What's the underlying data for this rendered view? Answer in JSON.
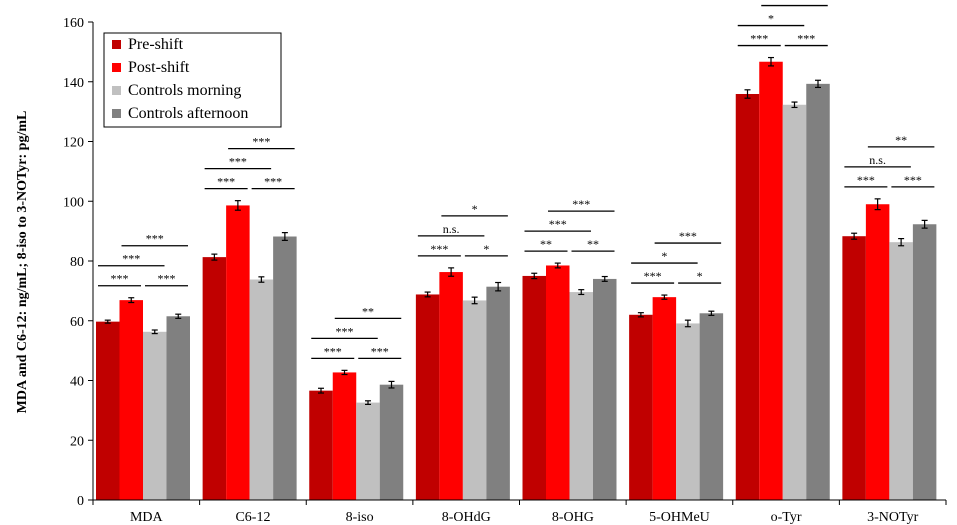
{
  "colors": {
    "pre_shift": "#c00000",
    "post_shift": "#ff0000",
    "controls_morning": "#c0c0c0",
    "controls_afternoon": "#808080"
  },
  "chart_data": {
    "type": "bar",
    "title": "",
    "xlabel": "",
    "ylabel": "MDA and C6-12: ng/mL; 8-iso to 3-NOTyr: pg/mL",
    "ylim": [
      0,
      160
    ],
    "yticks": [
      0,
      20,
      40,
      60,
      80,
      100,
      120,
      140,
      160
    ],
    "grid": false,
    "legend_position": "top-left",
    "categories": [
      "MDA",
      "C6-12",
      "8-iso",
      "8-OHdG",
      "8-OHG",
      "5-OHMeU",
      "o-Tyr",
      "3-NOTyr"
    ],
    "series": [
      {
        "name": "Pre-shift",
        "color_key": "pre_shift",
        "values": [
          59.7,
          81.3,
          36.6,
          68.8,
          75.0,
          62.0,
          135.9,
          88.3
        ],
        "errors": [
          0.5,
          1.0,
          0.8,
          0.8,
          0.9,
          0.7,
          1.4,
          1.0
        ]
      },
      {
        "name": "Post-shift",
        "color_key": "post_shift",
        "values": [
          66.9,
          98.6,
          42.7,
          76.3,
          78.5,
          67.9,
          146.7,
          99.0
        ],
        "errors": [
          0.8,
          1.6,
          0.7,
          1.4,
          0.8,
          0.7,
          1.4,
          1.8
        ]
      },
      {
        "name": "Controls morning",
        "color_key": "controls_morning",
        "values": [
          56.3,
          73.8,
          32.6,
          66.8,
          69.6,
          59.1,
          132.3,
          86.3
        ],
        "errors": [
          0.6,
          0.9,
          0.6,
          1.1,
          0.8,
          1.1,
          0.9,
          1.2
        ]
      },
      {
        "name": "Controls afternoon",
        "color_key": "controls_afternoon",
        "values": [
          61.5,
          88.2,
          38.6,
          71.4,
          74.0,
          62.5,
          139.3,
          92.3
        ],
        "errors": [
          0.7,
          1.3,
          1.1,
          1.4,
          0.8,
          0.7,
          1.2,
          1.3
        ]
      }
    ],
    "annotations": [
      {
        "category": 0,
        "from": 0,
        "to": 1,
        "level": 1,
        "label": "***"
      },
      {
        "category": 0,
        "from": 2,
        "to": 3,
        "level": 1,
        "label": "***"
      },
      {
        "category": 0,
        "from": 0,
        "to": 2,
        "level": 2,
        "label": "***"
      },
      {
        "category": 0,
        "from": 1,
        "to": 3,
        "level": 3,
        "label": "***"
      },
      {
        "category": 1,
        "from": 0,
        "to": 1,
        "level": 1,
        "label": "***"
      },
      {
        "category": 1,
        "from": 2,
        "to": 3,
        "level": 1,
        "label": "***"
      },
      {
        "category": 1,
        "from": 0,
        "to": 2,
        "level": 2,
        "label": "***"
      },
      {
        "category": 1,
        "from": 1,
        "to": 3,
        "level": 3,
        "label": "***"
      },
      {
        "category": 2,
        "from": 0,
        "to": 1,
        "level": 1,
        "label": "***"
      },
      {
        "category": 2,
        "from": 2,
        "to": 3,
        "level": 1,
        "label": "***"
      },
      {
        "category": 2,
        "from": 0,
        "to": 2,
        "level": 2,
        "label": "***"
      },
      {
        "category": 2,
        "from": 1,
        "to": 3,
        "level": 3,
        "label": "**"
      },
      {
        "category": 3,
        "from": 0,
        "to": 1,
        "level": 1,
        "label": "***"
      },
      {
        "category": 3,
        "from": 2,
        "to": 3,
        "level": 1,
        "label": "*"
      },
      {
        "category": 3,
        "from": 0,
        "to": 2,
        "level": 2,
        "label": "n.s."
      },
      {
        "category": 3,
        "from": 1,
        "to": 3,
        "level": 3,
        "label": "*"
      },
      {
        "category": 4,
        "from": 0,
        "to": 1,
        "level": 1,
        "label": "**"
      },
      {
        "category": 4,
        "from": 2,
        "to": 3,
        "level": 1,
        "label": "**"
      },
      {
        "category": 4,
        "from": 0,
        "to": 2,
        "level": 2,
        "label": "***"
      },
      {
        "category": 4,
        "from": 1,
        "to": 3,
        "level": 3,
        "label": "***"
      },
      {
        "category": 5,
        "from": 0,
        "to": 1,
        "level": 1,
        "label": "***"
      },
      {
        "category": 5,
        "from": 2,
        "to": 3,
        "level": 1,
        "label": "*"
      },
      {
        "category": 5,
        "from": 0,
        "to": 2,
        "level": 2,
        "label": "*"
      },
      {
        "category": 5,
        "from": 1,
        "to": 3,
        "level": 3,
        "label": "***"
      },
      {
        "category": 6,
        "from": 0,
        "to": 1,
        "level": 1,
        "label": "***"
      },
      {
        "category": 6,
        "from": 2,
        "to": 3,
        "level": 1,
        "label": "***"
      },
      {
        "category": 6,
        "from": 0,
        "to": 2,
        "level": 2,
        "label": "*"
      },
      {
        "category": 6,
        "from": 1,
        "to": 3,
        "level": 3,
        "label": "***"
      },
      {
        "category": 7,
        "from": 0,
        "to": 1,
        "level": 1,
        "label": "***"
      },
      {
        "category": 7,
        "from": 2,
        "to": 3,
        "level": 1,
        "label": "***"
      },
      {
        "category": 7,
        "from": 0,
        "to": 2,
        "level": 2,
        "label": "n.s."
      },
      {
        "category": 7,
        "from": 1,
        "to": 3,
        "level": 3,
        "label": "**"
      }
    ]
  }
}
